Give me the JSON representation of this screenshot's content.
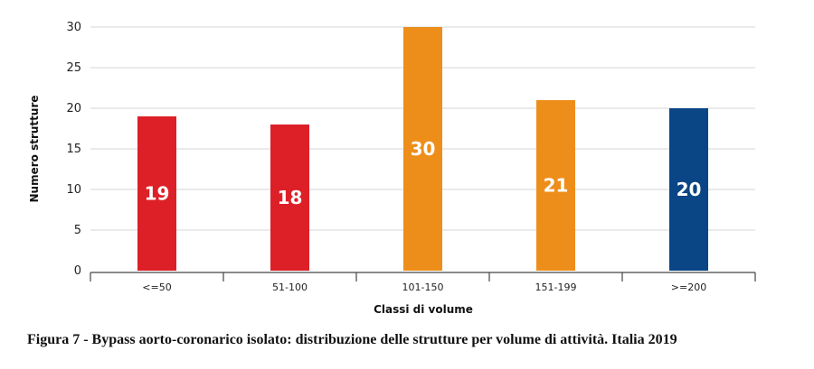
{
  "chart_data": {
    "type": "bar",
    "title": "",
    "xlabel": "Classi di volume",
    "ylabel": "Numero strutture",
    "categories": [
      "<=50",
      "51-100",
      "101-150",
      "151-199",
      ">=200"
    ],
    "values": [
      19,
      18,
      30,
      21,
      20
    ],
    "data_labels": [
      "19",
      "18",
      "30",
      "21",
      "20"
    ],
    "bar_colors": [
      "#dd2027",
      "#dd2027",
      "#ee8e1a",
      "#ee8e1a",
      "#0a4585"
    ],
    "ylim": [
      0,
      30
    ],
    "yticks": [
      0,
      5,
      10,
      15,
      20,
      25,
      30
    ],
    "grid": true,
    "legend": "none"
  },
  "caption": "Figura 7 - Bypass aorto-coronarico isolato: distribuzione delle strutture per volume di attività. Italia 2019"
}
